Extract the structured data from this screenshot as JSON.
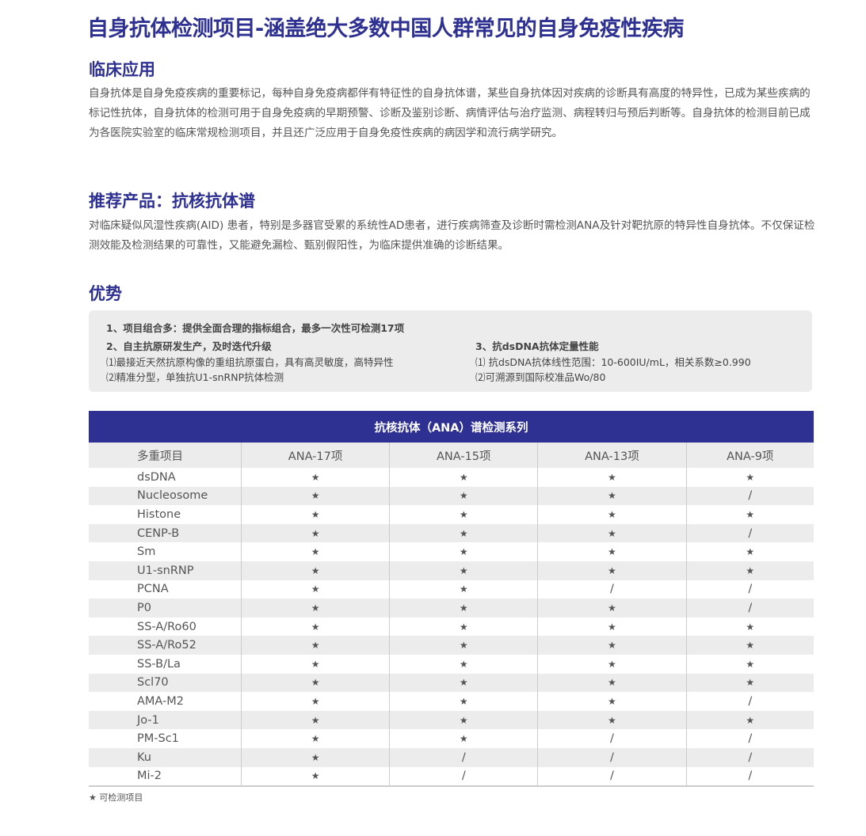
{
  "title": "自身抗体检测项目-涵盖绝大多数中国人群常见的自身免疫性疾病",
  "clinical": {
    "heading": "临床应用",
    "text": "自身抗体是自身免疫疾病的重要标记，每种自身免疫病都伴有特征性的自身抗体谱，某些自身抗体因对疾病的诊断具有高度的特异性，已成为某些疾病的标记性抗体，自身抗体的检测可用于自身免疫病的早期预警、诊断及鉴别诊断、病情评估与治疗监测、病程转归与预后判断等。自身抗体的检测目前已成为各医院实验室的临床常规检测项目，并且还广泛应用于自身免疫性疾病的病因学和流行病学研究。"
  },
  "product": {
    "heading": "推荐产品：抗核抗体谱",
    "text": "对临床疑似风湿性疾病(AID) 患者，特别是多器官受累的系统性AD患者，进行疾病筛查及诊断时需检测ANA及针对靶抗原的特异性自身抗体。不仅保证检测效能及检测结果的可靠性，又能避免漏检、甄别假阳性，为临床提供准确的诊断结果。"
  },
  "advantages": {
    "heading": "优势",
    "items": [
      "1、项目组合多：提供全面合理的指标组合，最多一次性可检测17项",
      "2、自主抗原研发生产，及时迭代升级",
      "⑴最接近天然抗原构像的重组抗原蛋白，具有高灵敏度，高特异性",
      "⑵精准分型，单独抗U1-snRNP抗体检测",
      "3、抗dsDNA抗体定量性能",
      "⑴ 抗dsDNA抗体线性范围：10-600IU/mL，相关系数≥0.990",
      "⑵可溯源到国际校准品Wo/80"
    ]
  },
  "table": {
    "title": "抗核抗体（ANA）谱检测系列",
    "columns": [
      "多重项目",
      "ANA-17项",
      "ANA-15项",
      "ANA-13项",
      "ANA-9项"
    ],
    "rows": [
      [
        "dsDNA",
        "★",
        "★",
        "★",
        "★"
      ],
      [
        "Nucleosome",
        "★",
        "★",
        "★",
        "/"
      ],
      [
        "Histone",
        "★",
        "★",
        "★",
        "★"
      ],
      [
        "CENP-B",
        "★",
        "★",
        "★",
        "/"
      ],
      [
        "Sm",
        "★",
        "★",
        "★",
        "★"
      ],
      [
        "U1-snRNP",
        "★",
        "★",
        "★",
        "★"
      ],
      [
        "PCNA",
        "★",
        "★",
        "/",
        "/"
      ],
      [
        "P0",
        "★",
        "★",
        "★",
        "/"
      ],
      [
        "SS-A/Ro60",
        "★",
        "★",
        "★",
        "★"
      ],
      [
        "SS-A/Ro52",
        "★",
        "★",
        "★",
        "★"
      ],
      [
        "SS-B/La",
        "★",
        "★",
        "★",
        "★"
      ],
      [
        "Scl70",
        "★",
        "★",
        "★",
        "★"
      ],
      [
        "AMA-M2",
        "★",
        "★",
        "★",
        "/"
      ],
      [
        "Jo-1",
        "★",
        "★",
        "★",
        "★"
      ],
      [
        "PM-Sc1",
        "★",
        "★",
        "/",
        "/"
      ],
      [
        "Ku",
        "★",
        "/",
        "/",
        "/"
      ],
      [
        "Mi-2",
        "★",
        "/",
        "/",
        "/"
      ]
    ]
  },
  "note": "★ 可检测项目"
}
